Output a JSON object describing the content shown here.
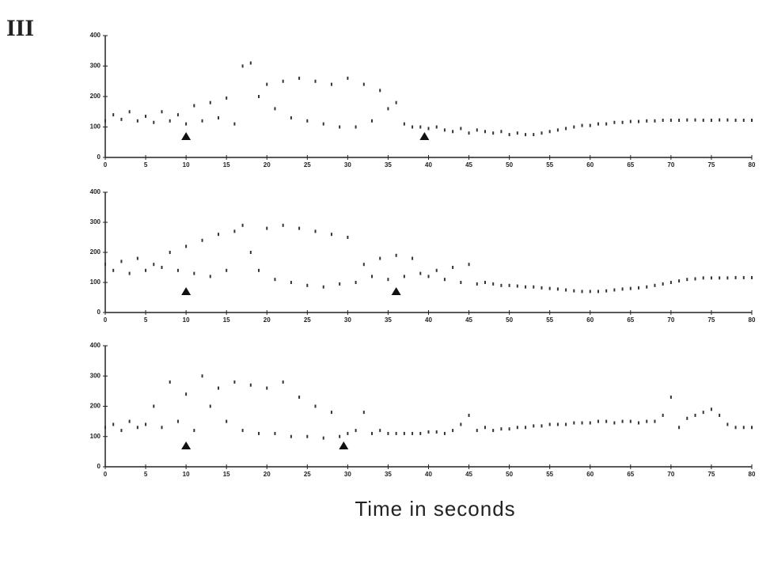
{
  "panel_label": "III",
  "xlabel": "Time in seconds",
  "chart_data": [
    {
      "type": "scatter",
      "color": "#333333",
      "x": [
        0,
        1,
        2,
        3,
        4,
        5,
        6,
        7,
        8,
        9,
        10,
        11,
        12,
        13,
        14,
        15,
        16,
        17,
        18,
        19,
        20,
        21,
        22,
        23,
        24,
        25,
        26,
        27,
        28,
        29,
        30,
        31,
        32,
        33,
        34,
        35,
        36,
        37,
        38,
        39,
        40,
        41,
        42,
        43,
        44,
        45,
        46,
        47,
        48,
        49,
        50,
        51,
        52,
        53,
        54,
        55,
        56,
        57,
        58,
        59,
        60,
        61,
        62,
        63,
        64,
        65,
        66,
        67,
        68,
        69,
        70,
        71,
        72,
        73,
        74,
        75,
        76,
        77,
        78,
        79,
        80
      ],
      "values": [
        120,
        140,
        125,
        150,
        120,
        135,
        115,
        150,
        120,
        140,
        110,
        170,
        120,
        180,
        130,
        195,
        110,
        300,
        310,
        200,
        240,
        160,
        250,
        130,
        260,
        120,
        250,
        110,
        240,
        100,
        260,
        100,
        240,
        120,
        220,
        160,
        180,
        110,
        100,
        100,
        95,
        100,
        90,
        85,
        95,
        80,
        90,
        85,
        80,
        85,
        75,
        80,
        75,
        75,
        80,
        85,
        90,
        95,
        100,
        105,
        105,
        110,
        110,
        115,
        115,
        118,
        118,
        120,
        120,
        122,
        122,
        122,
        123,
        123,
        122,
        122,
        123,
        123,
        122,
        122,
        122
      ],
      "arrows": [
        10,
        39.5
      ],
      "xlim": [
        0,
        80
      ],
      "ylim": [
        0,
        400
      ],
      "xticks": [
        0,
        5,
        10,
        15,
        20,
        25,
        30,
        35,
        40,
        45,
        50,
        55,
        60,
        65,
        70,
        75,
        80
      ],
      "yticks": [
        0,
        100,
        200,
        300,
        400
      ]
    },
    {
      "type": "scatter",
      "color": "#333333",
      "x": [
        0,
        1,
        2,
        3,
        4,
        5,
        6,
        7,
        8,
        9,
        10,
        11,
        12,
        13,
        14,
        15,
        16,
        17,
        18,
        19,
        20,
        21,
        22,
        23,
        24,
        25,
        26,
        27,
        28,
        29,
        30,
        31,
        32,
        33,
        34,
        35,
        36,
        37,
        38,
        39,
        40,
        41,
        42,
        43,
        44,
        45,
        46,
        47,
        48,
        49,
        50,
        51,
        52,
        53,
        54,
        55,
        56,
        57,
        58,
        59,
        60,
        61,
        62,
        63,
        64,
        65,
        66,
        67,
        68,
        69,
        70,
        71,
        72,
        73,
        74,
        75,
        76,
        77,
        78,
        79,
        80
      ],
      "values": [
        160,
        140,
        170,
        130,
        180,
        140,
        160,
        150,
        200,
        140,
        220,
        130,
        240,
        120,
        260,
        140,
        270,
        290,
        200,
        140,
        280,
        110,
        290,
        100,
        280,
        90,
        270,
        85,
        260,
        95,
        250,
        100,
        160,
        120,
        180,
        110,
        190,
        120,
        180,
        130,
        120,
        140,
        110,
        150,
        100,
        160,
        95,
        100,
        95,
        90,
        90,
        88,
        85,
        85,
        82,
        80,
        78,
        75,
        72,
        70,
        70,
        70,
        72,
        75,
        78,
        80,
        82,
        85,
        90,
        95,
        100,
        105,
        110,
        112,
        115,
        115,
        115,
        115,
        116,
        116,
        116
      ],
      "arrows": [
        10,
        36
      ],
      "xlim": [
        0,
        80
      ],
      "ylim": [
        0,
        400
      ],
      "xticks": [
        0,
        5,
        10,
        15,
        20,
        25,
        30,
        35,
        40,
        45,
        50,
        55,
        60,
        65,
        70,
        75,
        80
      ],
      "yticks": [
        0,
        100,
        200,
        300,
        400
      ]
    },
    {
      "type": "scatter",
      "color": "#333333",
      "x": [
        0,
        1,
        2,
        3,
        4,
        5,
        6,
        7,
        8,
        9,
        10,
        11,
        12,
        13,
        14,
        15,
        16,
        17,
        18,
        19,
        20,
        21,
        22,
        23,
        24,
        25,
        26,
        27,
        28,
        29,
        30,
        31,
        32,
        33,
        34,
        35,
        36,
        37,
        38,
        39,
        40,
        41,
        42,
        43,
        44,
        45,
        46,
        47,
        48,
        49,
        50,
        51,
        52,
        53,
        54,
        55,
        56,
        57,
        58,
        59,
        60,
        61,
        62,
        63,
        64,
        65,
        66,
        67,
        68,
        69,
        70,
        71,
        72,
        73,
        74,
        75,
        76,
        77,
        78,
        79,
        80
      ],
      "values": [
        130,
        140,
        120,
        150,
        130,
        140,
        200,
        130,
        280,
        150,
        240,
        120,
        300,
        200,
        260,
        150,
        280,
        120,
        270,
        110,
        260,
        110,
        280,
        100,
        230,
        100,
        200,
        95,
        180,
        100,
        110,
        120,
        180,
        110,
        120,
        110,
        110,
        110,
        110,
        110,
        115,
        115,
        110,
        120,
        140,
        170,
        120,
        130,
        120,
        125,
        125,
        130,
        130,
        135,
        135,
        140,
        140,
        140,
        145,
        145,
        145,
        150,
        150,
        145,
        150,
        150,
        145,
        150,
        150,
        170,
        230,
        130,
        160,
        170,
        180,
        190,
        170,
        140,
        130,
        130,
        130
      ],
      "arrows": [
        10,
        29.5
      ],
      "xlim": [
        0,
        80
      ],
      "ylim": [
        0,
        400
      ],
      "xticks": [
        0,
        5,
        10,
        15,
        20,
        25,
        30,
        35,
        40,
        45,
        50,
        55,
        60,
        65,
        70,
        75,
        80
      ],
      "yticks": [
        0,
        100,
        200,
        300,
        400
      ]
    }
  ]
}
